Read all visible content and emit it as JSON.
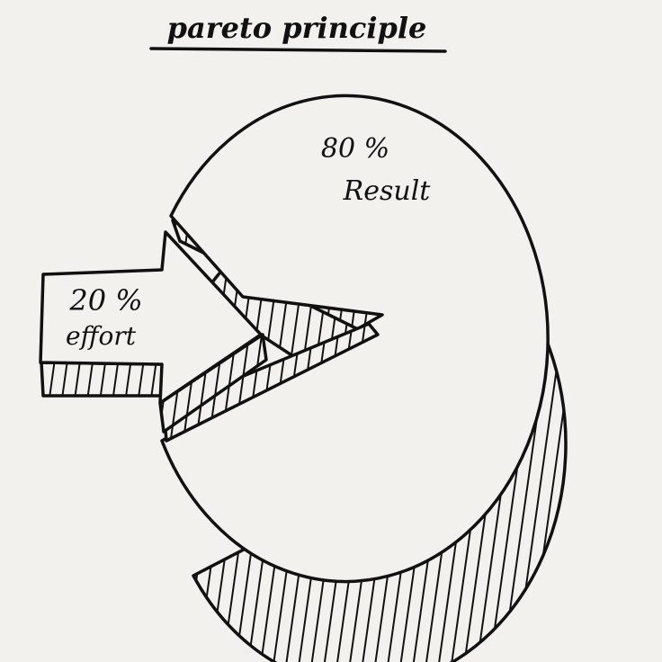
{
  "title": "pareto principle",
  "major": {
    "percent": "80 %",
    "label": "Result"
  },
  "minor": {
    "percent": "20 %",
    "label": "effort"
  }
}
